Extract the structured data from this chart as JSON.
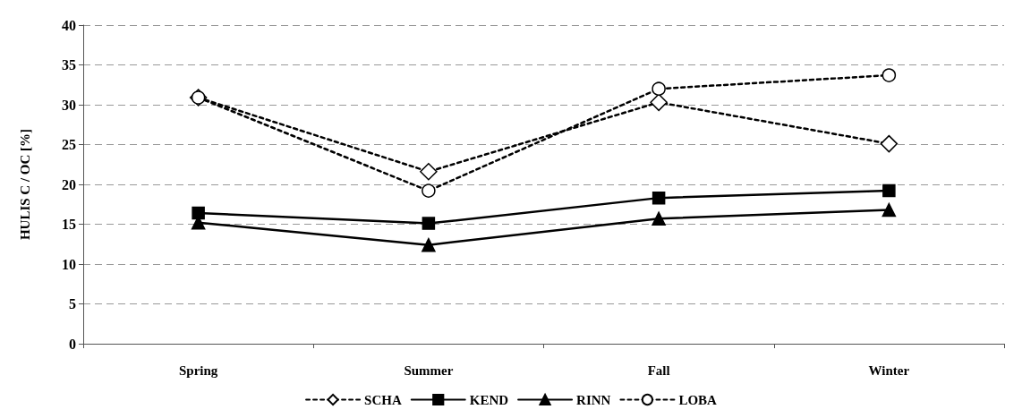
{
  "chart_data": {
    "type": "line",
    "ylabel": "HULIS C / OC [%]",
    "categories": [
      "Spring",
      "Summer",
      "Fall",
      "Winter"
    ],
    "series": [
      {
        "name": "SCHA",
        "color": "#000000",
        "marker": "diamond",
        "line_style": "dashed",
        "values": [
          30.9,
          21.6,
          30.3,
          25.1
        ]
      },
      {
        "name": "KEND",
        "color": "#000000",
        "marker": "square",
        "line_style": "solid",
        "values": [
          16.4,
          15.1,
          18.3,
          19.2
        ]
      },
      {
        "name": "RINN",
        "color": "#000000",
        "marker": "triangle",
        "line_style": "solid",
        "values": [
          15.2,
          12.4,
          15.7,
          16.8
        ]
      },
      {
        "name": "LOBA",
        "color": "#000000",
        "marker": "circle",
        "line_style": "dashed",
        "values": [
          30.9,
          19.2,
          32.0,
          33.7
        ]
      }
    ],
    "ylim": [
      0,
      40
    ],
    "yticks": [
      0,
      5,
      10,
      15,
      20,
      25,
      30,
      35,
      40
    ],
    "grid": "y",
    "legend": "bottom"
  }
}
